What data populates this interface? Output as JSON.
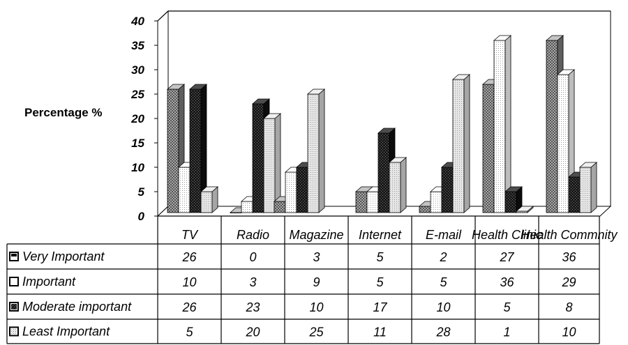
{
  "chart_data": {
    "type": "bar",
    "title": "",
    "ylabel": "Percentage %",
    "ylim": [
      0,
      40
    ],
    "yticks": [
      0,
      5,
      10,
      15,
      20,
      25,
      30,
      35,
      40
    ],
    "grid": true,
    "three_d": true,
    "data_table": true,
    "categories": [
      "TV",
      "Radio",
      "Magazine",
      "Internet",
      "E-mail",
      "Health Clinic",
      "Health Commnity"
    ],
    "series": [
      {
        "name": "Very Important",
        "values": [
          26,
          0,
          3,
          5,
          2,
          27,
          36
        ],
        "color": "#909090"
      },
      {
        "name": "Important",
        "values": [
          10,
          3,
          9,
          5,
          5,
          36,
          29
        ],
        "color": "#f4f4f4"
      },
      {
        "name": "Moderate important",
        "values": [
          26,
          23,
          10,
          17,
          10,
          5,
          8
        ],
        "color": "#222222"
      },
      {
        "name": "Least Important",
        "values": [
          5,
          20,
          25,
          11,
          28,
          1,
          10
        ],
        "color": "#cfcfcf"
      }
    ]
  }
}
